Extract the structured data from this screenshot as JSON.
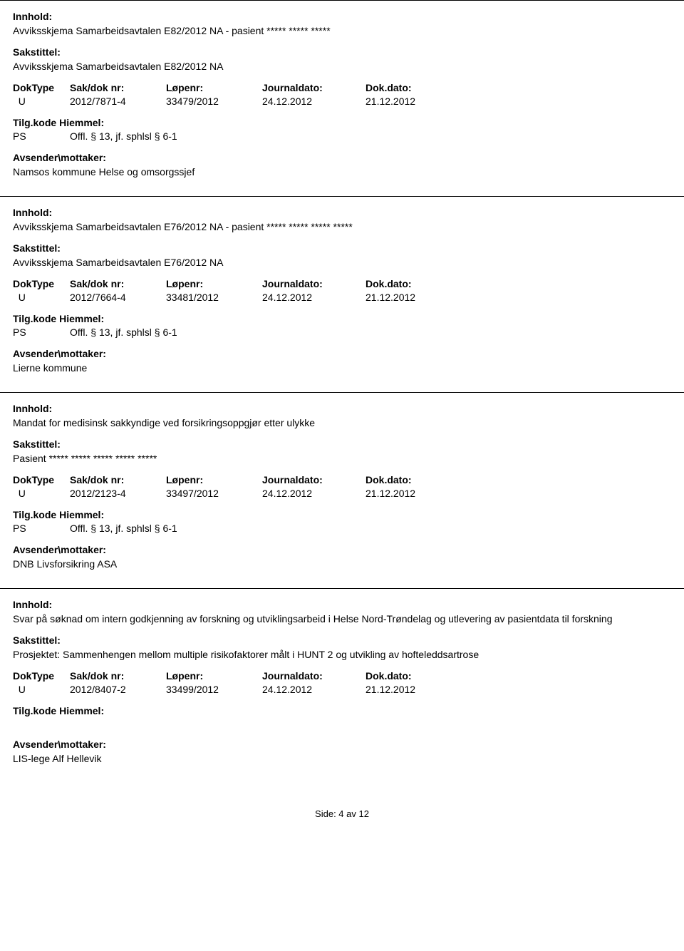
{
  "labels": {
    "innhold": "Innhold:",
    "sakstittel": "Sakstittel:",
    "doktype": "DokType",
    "saknr": "Sak/dok nr:",
    "lopenr": "Løpenr:",
    "journaldato": "Journaldato:",
    "dokdato": "Dok.dato:",
    "tilgkode": "Tilg.kode",
    "hiemmel": "Hiemmel:",
    "avsender": "Avsender\\mottaker:"
  },
  "entries": [
    {
      "innhold": "Avviksskjema Samarbeidsavtalen E82/2012 NA - pasient ***** ***** *****",
      "sakstittel": "Avviksskjema Samarbeidsavtalen E82/2012 NA",
      "doktype": "U",
      "saknr": "2012/7871-4",
      "lopenr": "33479/2012",
      "jdato": "24.12.2012",
      "dokdato": "21.12.2012",
      "hiemmel_code": "PS",
      "hiemmel_text": "Offl. § 13, jf. sphlsl § 6-1",
      "avsender": "Namsos kommune Helse og omsorgssjef",
      "show_avsender_label": true
    },
    {
      "innhold": "Avviksskjema Samarbeidsavtalen E76/2012 NA - pasient ***** ***** ***** *****",
      "sakstittel": "Avviksskjema Samarbeidsavtalen E76/2012 NA",
      "doktype": "U",
      "saknr": "2012/7664-4",
      "lopenr": "33481/2012",
      "jdato": "24.12.2012",
      "dokdato": "21.12.2012",
      "hiemmel_code": "PS",
      "hiemmel_text": "Offl. § 13, jf. sphlsl § 6-1",
      "avsender": "Lierne kommune",
      "show_avsender_label": true
    },
    {
      "innhold": "Mandat for medisinsk sakkyndige ved forsikringsoppgjør etter ulykke",
      "sakstittel": "Pasient ***** ***** ***** ***** *****",
      "doktype": "U",
      "saknr": "2012/2123-4",
      "lopenr": "33497/2012",
      "jdato": "24.12.2012",
      "dokdato": "21.12.2012",
      "hiemmel_code": "PS",
      "hiemmel_text": "Offl. § 13, jf. sphlsl § 6-1",
      "avsender": "DNB Livsforsikring ASA",
      "show_avsender_label": true
    },
    {
      "innhold": "Svar på søknad om intern godkjenning av forskning og utviklingsarbeid i Helse Nord-Trøndelag og utlevering av pasientdata til forskning",
      "sakstittel": "Prosjektet:  Sammenhengen mellom multiple risikofaktorer målt i HUNT 2 og utvikling av hofteleddsartrose",
      "doktype": "U",
      "saknr": "2012/8407-2",
      "lopenr": "33499/2012",
      "jdato": "24.12.2012",
      "dokdato": "21.12.2012",
      "hiemmel_code": "",
      "hiemmel_text": "",
      "avsender": "LIS-lege Alf Hellevik",
      "show_avsender_label": true
    }
  ],
  "footer": "Side: 4 av 12"
}
